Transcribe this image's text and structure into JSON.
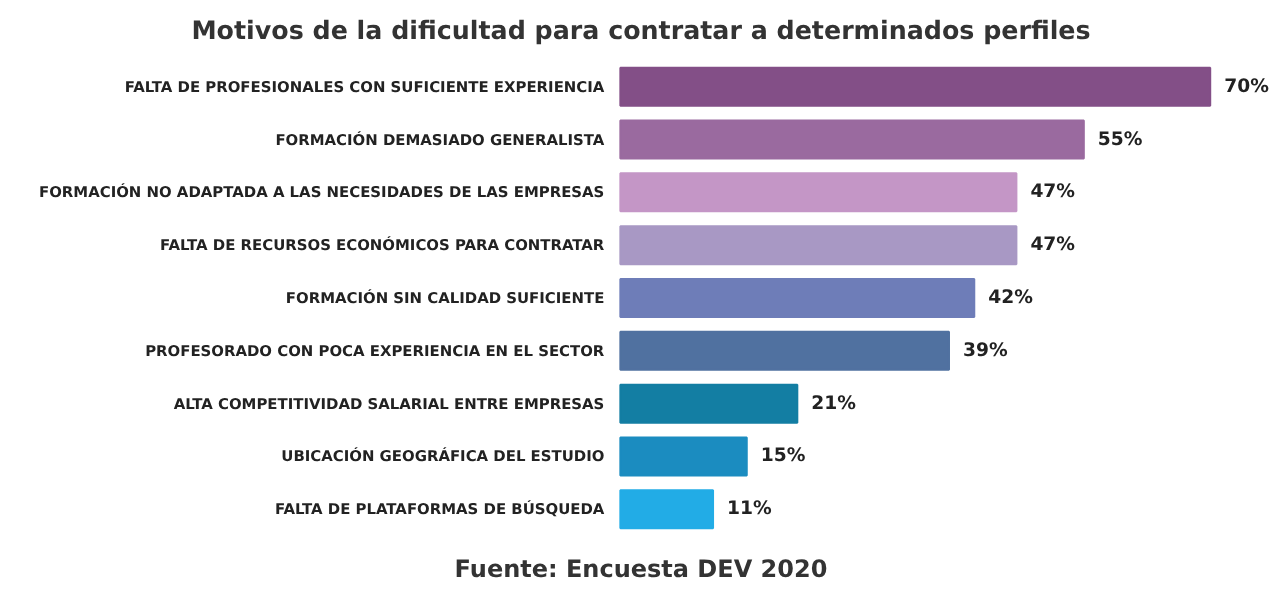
{
  "chart_data": {
    "type": "bar",
    "orientation": "horizontal",
    "title": "Motivos de la dificultad para contratar a determinados perfiles",
    "categories": [
      "FALTA DE PROFESIONALES CON SUFICIENTE EXPERIENCIA",
      "FORMACIÓN DEMASIADO GENERALISTA",
      "FORMACIÓN NO ADAPTADA A LAS NECESIDADES DE LAS EMPRESAS",
      "FALTA DE RECURSOS ECONÓMICOS PARA CONTRATAR",
      "FORMACIÓN SIN CALIDAD SUFICIENTE",
      "PROFESORADO CON POCA EXPERIENCIA EN EL SECTOR",
      "ALTA COMPETITIVIDAD SALARIAL ENTRE EMPRESAS",
      "UBICACIÓN GEOGRÁFICA DEL ESTUDIO",
      "FALTA DE PLATAFORMAS DE BÚSQUEDA"
    ],
    "values": [
      70,
      55,
      47,
      47,
      42,
      39,
      21,
      15,
      11
    ],
    "value_labels": [
      "70%",
      "55%",
      "47%",
      "47%",
      "42%",
      "39%",
      "21%",
      "15%",
      "11%"
    ],
    "colors": [
      "#834f87",
      "#9a6a9f",
      "#c496c6",
      "#a898c4",
      "#6e7db8",
      "#5071a0",
      "#137ea3",
      "#1b8cc0",
      "#22ace6"
    ],
    "annotations": [
      "Fuente: Encuesta DEV 2020"
    ]
  }
}
